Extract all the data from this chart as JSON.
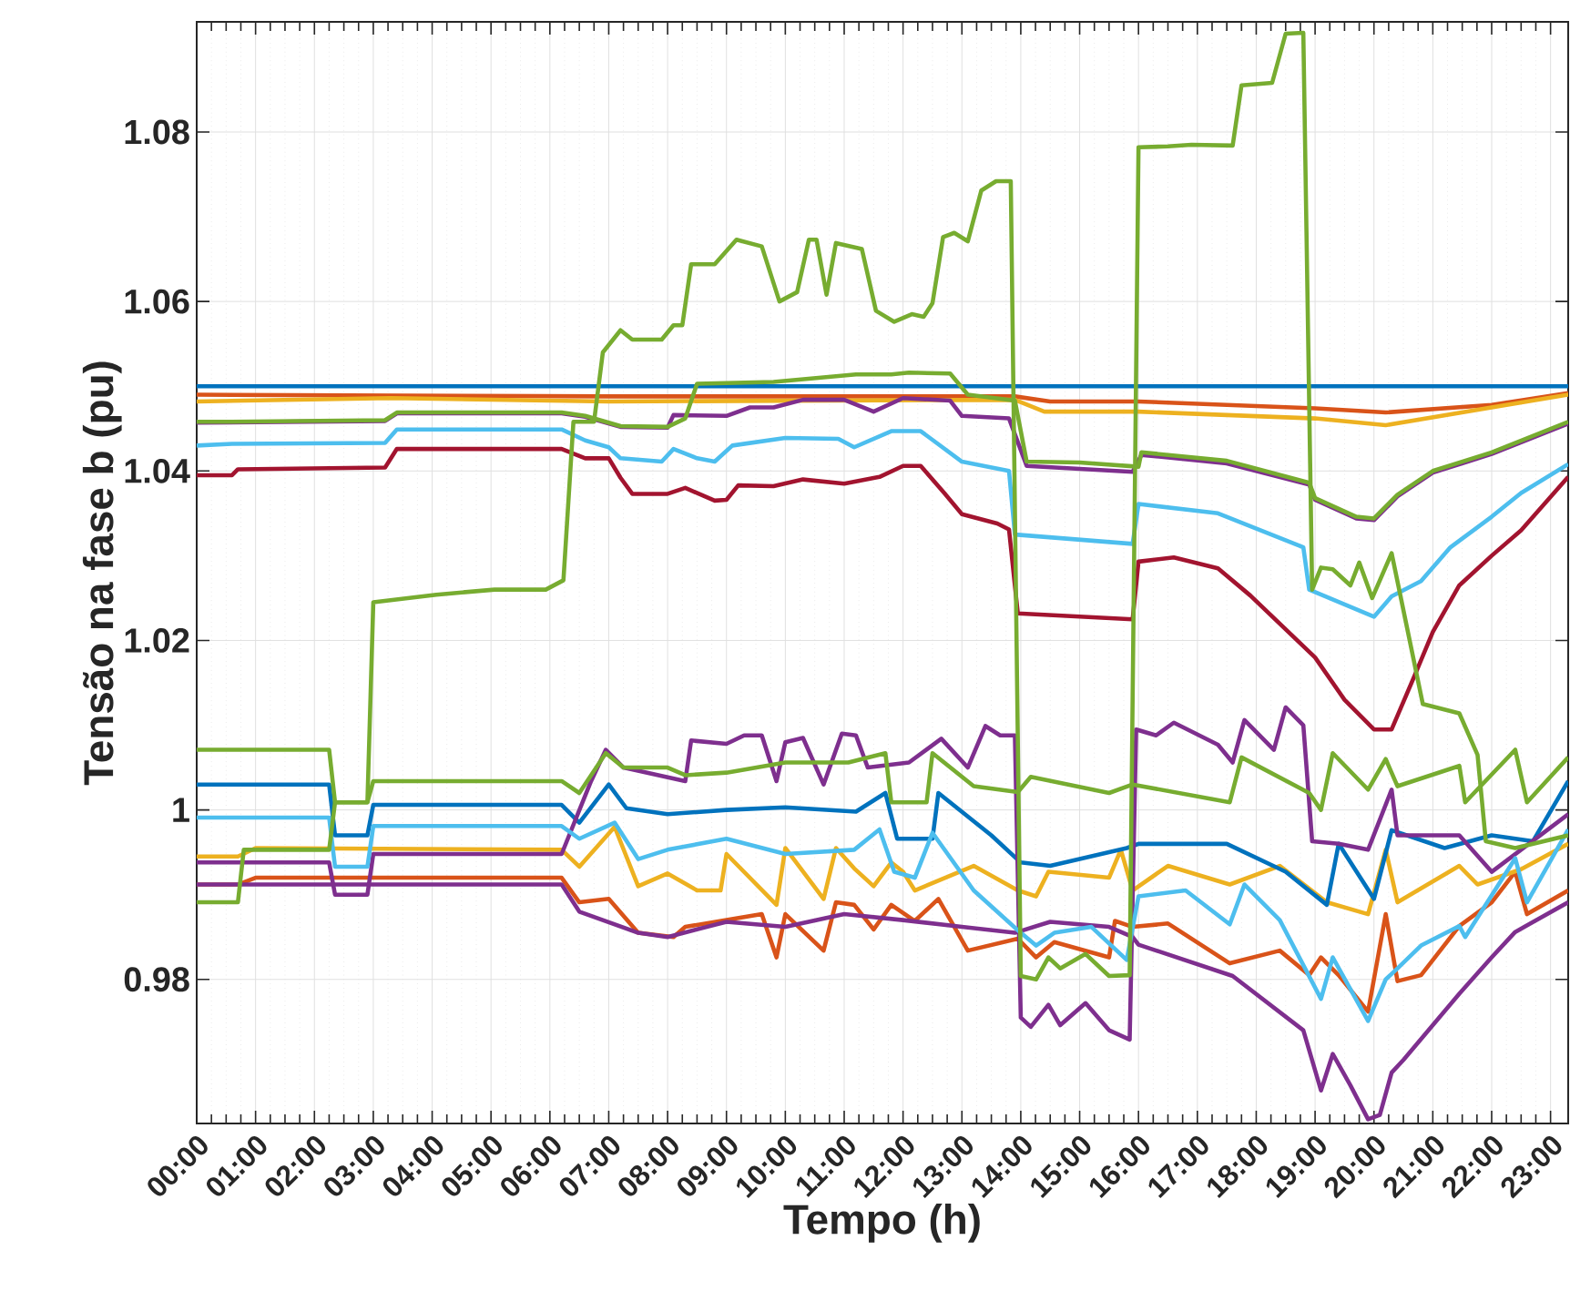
{
  "chart_data": {
    "type": "line",
    "xlabel": "Tempo (h)",
    "ylabel": "Tensão na fase b (pu)",
    "xlim": [
      0,
      23.3
    ],
    "ylim": [
      0.963,
      1.093
    ],
    "xticks": [
      {
        "value": 0,
        "label": "00:00"
      },
      {
        "value": 1,
        "label": "01:00"
      },
      {
        "value": 2,
        "label": "02:00"
      },
      {
        "value": 3,
        "label": "03:00"
      },
      {
        "value": 4,
        "label": "04:00"
      },
      {
        "value": 5,
        "label": "05:00"
      },
      {
        "value": 6,
        "label": "06:00"
      },
      {
        "value": 7,
        "label": "07:00"
      },
      {
        "value": 8,
        "label": "08:00"
      },
      {
        "value": 9,
        "label": "09:00"
      },
      {
        "value": 10,
        "label": "10:00"
      },
      {
        "value": 11,
        "label": "11:00"
      },
      {
        "value": 12,
        "label": "12:00"
      },
      {
        "value": 13,
        "label": "13:00"
      },
      {
        "value": 14,
        "label": "14:00"
      },
      {
        "value": 15,
        "label": "15:00"
      },
      {
        "value": 16,
        "label": "16:00"
      },
      {
        "value": 17,
        "label": "17:00"
      },
      {
        "value": 18,
        "label": "18:00"
      },
      {
        "value": 19,
        "label": "19:00"
      },
      {
        "value": 20,
        "label": "20:00"
      },
      {
        "value": 21,
        "label": "21:00"
      },
      {
        "value": 22,
        "label": "22:00"
      },
      {
        "value": 23,
        "label": "23:00"
      }
    ],
    "yticks": [
      0.98,
      1,
      1.02,
      1.04,
      1.06,
      1.08
    ],
    "grid": true,
    "line_style": "solid",
    "series": [
      {
        "color": "#0072bd",
        "x": [
          0,
          23.3
        ],
        "values": [
          1.05,
          1.05
        ]
      },
      {
        "color": "#d95319",
        "x": [
          0,
          7,
          13.9,
          14.5,
          16,
          19,
          20.2,
          22,
          23.3
        ],
        "values": [
          1.049,
          1.0488,
          1.0488,
          1.0482,
          1.0482,
          1.0474,
          1.0469,
          1.0478,
          1.0492
        ]
      },
      {
        "color": "#edb120",
        "x": [
          0,
          3.3,
          7,
          13.9,
          14.4,
          16,
          19,
          20.2,
          22,
          23.3
        ],
        "values": [
          1.0482,
          1.0486,
          1.0482,
          1.0484,
          1.047,
          1.047,
          1.0462,
          1.0454,
          1.0475,
          1.049
        ]
      },
      {
        "color": "#7e2f8e",
        "x": [
          0,
          3.2,
          3.4,
          6.2,
          6.6,
          7.2,
          8.0,
          8.1,
          9.0,
          9.4,
          9.8,
          10.3,
          11.0,
          11.5,
          12.0,
          12.8,
          13.0,
          13.8,
          14.1,
          15.9,
          16.05,
          17.5,
          18.9,
          19.0,
          19.7,
          20.0,
          20.4,
          21,
          22,
          23.3
        ],
        "values": [
          1.0457,
          1.0459,
          1.0468,
          1.0468,
          1.0464,
          1.0452,
          1.0451,
          1.0466,
          1.0465,
          1.0475,
          1.0475,
          1.0484,
          1.0484,
          1.047,
          1.0486,
          1.0483,
          1.0465,
          1.0462,
          1.0406,
          1.0399,
          1.0419,
          1.0409,
          1.0384,
          1.0366,
          1.0344,
          1.0342,
          1.037,
          1.0398,
          1.042,
          1.0456
        ]
      },
      {
        "color": "#77ac30",
        "x": [
          0,
          0.5,
          3.2,
          3.4,
          6.2,
          6.6,
          7.2,
          8.0,
          8.3,
          8.5,
          9.8,
          11.2,
          11.8,
          12.1,
          12.8,
          13.1,
          13.9,
          14.1,
          15,
          16.0,
          16.05,
          17.5,
          18.9,
          19.0,
          19.7,
          20.0,
          20.4,
          21,
          22,
          23.3
        ],
        "values": [
          1.0458,
          1.0458,
          1.046,
          1.0469,
          1.0469,
          1.0465,
          1.0453,
          1.0452,
          1.0462,
          1.0503,
          1.0505,
          1.0514,
          1.0514,
          1.0516,
          1.0515,
          1.049,
          1.0483,
          1.0411,
          1.041,
          1.0405,
          1.0422,
          1.0412,
          1.0386,
          1.0368,
          1.0346,
          1.0344,
          1.0372,
          1.04,
          1.0422,
          1.0458
        ]
      },
      {
        "color": "#4dbeee",
        "x": [
          0,
          0.6,
          3.2,
          3.4,
          6.2,
          6.6,
          7.0,
          7.2,
          7.9,
          8.1,
          8.5,
          8.8,
          9.1,
          10.0,
          10.9,
          11.17,
          11.8,
          12.3,
          13.0,
          13.8,
          13.9,
          15.9,
          16.0,
          17.35,
          18.8,
          18.9,
          20.0,
          20.3,
          20.8,
          21.3,
          22.0,
          22.5,
          23.3
        ],
        "values": [
          1.043,
          1.0432,
          1.0433,
          1.0449,
          1.0449,
          1.0436,
          1.0428,
          1.0415,
          1.0411,
          1.0426,
          1.0415,
          1.0411,
          1.043,
          1.0439,
          1.0438,
          1.0428,
          1.0447,
          1.0447,
          1.0411,
          1.04,
          1.0325,
          1.0314,
          1.0361,
          1.035,
          1.031,
          1.026,
          1.0228,
          1.0252,
          1.027,
          1.031,
          1.0346,
          1.0374,
          1.0408
        ]
      },
      {
        "color": "#a2142f",
        "x": [
          0,
          0.6,
          0.7,
          3.2,
          3.4,
          6.2,
          6.6,
          7.0,
          7.2,
          7.4,
          8.0,
          8.3,
          8.8,
          9.0,
          9.2,
          9.8,
          10.3,
          11.0,
          11.6,
          12.0,
          12.3,
          12.7,
          13.0,
          13.6,
          13.8,
          13.95,
          15.9,
          16.0,
          16.6,
          17.35,
          17.9,
          19.0,
          19.5,
          20.0,
          20.3,
          20.7,
          21.0,
          21.45,
          22.0,
          22.5,
          23.3
        ],
        "values": [
          1.0395,
          1.0395,
          1.0402,
          1.0404,
          1.0426,
          1.0426,
          1.0415,
          1.0415,
          1.0392,
          1.0373,
          1.0373,
          1.038,
          1.0365,
          1.0366,
          1.0383,
          1.0382,
          1.039,
          1.0385,
          1.0393,
          1.0406,
          1.0406,
          1.0374,
          1.0349,
          1.0338,
          1.0331,
          1.0232,
          1.0225,
          1.0293,
          1.0298,
          1.0285,
          1.0253,
          1.018,
          1.013,
          1.0095,
          1.0095,
          1.016,
          1.021,
          1.0265,
          1.03,
          1.033,
          1.0393
        ]
      },
      {
        "color": "#d95319",
        "x": [
          0,
          0.7,
          1.0,
          6.2,
          6.5,
          7.0,
          7.5,
          8.1,
          8.3,
          9.0,
          9.6,
          9.85,
          10.0,
          10.65,
          10.86,
          11.17,
          11.5,
          11.8,
          12.2,
          12.6,
          13.1,
          13.95,
          14.26,
          14.57,
          15.5,
          15.6,
          15.9,
          16.5,
          17.55,
          18.4,
          18.9,
          19.1,
          19.4,
          19.9,
          20.2,
          20.4,
          20.8,
          21.45,
          22.0,
          22.4,
          22.6,
          23.3
        ],
        "values": [
          0.9912,
          0.9912,
          0.992,
          0.992,
          0.9891,
          0.9895,
          0.9855,
          0.985,
          0.9862,
          0.987,
          0.9877,
          0.9826,
          0.9877,
          0.9834,
          0.9891,
          0.9888,
          0.9859,
          0.9888,
          0.9869,
          0.9895,
          0.9834,
          0.9848,
          0.9826,
          0.9844,
          0.9826,
          0.9869,
          0.9862,
          0.9866,
          0.9819,
          0.9834,
          0.9805,
          0.9826,
          0.9805,
          0.9762,
          0.9877,
          0.9798,
          0.9805,
          0.9863,
          0.9891,
          0.9927,
          0.9877,
          0.9905
        ]
      },
      {
        "color": "#7e2f8e",
        "x": [
          0,
          6.2,
          6.5,
          7.5,
          8.0,
          9.0,
          10.0,
          11.0,
          12.0,
          13.0,
          13.9,
          14.5,
          15.5,
          15.9,
          16.0,
          17.6,
          18.8,
          19.1,
          19.3,
          19.6,
          19.9,
          20.1,
          20.3,
          20.5,
          21.45,
          22.0,
          22.4,
          23.3
        ],
        "values": [
          0.9912,
          0.9912,
          0.988,
          0.9855,
          0.985,
          0.9868,
          0.9862,
          0.9877,
          0.987,
          0.9862,
          0.9855,
          0.9868,
          0.9862,
          0.985,
          0.9841,
          0.9804,
          0.974,
          0.9669,
          0.9712,
          0.9675,
          0.9635,
          0.964,
          0.969,
          0.9705,
          0.9783,
          0.9826,
          0.9856,
          0.9891
        ]
      },
      {
        "color": "#edb120",
        "x": [
          0,
          0.7,
          1.0,
          6.2,
          6.5,
          7.1,
          7.5,
          8.0,
          8.5,
          8.9,
          9.0,
          9.85,
          10.0,
          10.65,
          10.86,
          11.17,
          11.5,
          11.8,
          12.0,
          12.2,
          13.2,
          13.95,
          14.26,
          14.47,
          15.5,
          15.7,
          15.9,
          16.5,
          17.55,
          18.4,
          19.2,
          19.9,
          20.2,
          20.4,
          21.45,
          21.76,
          22.5,
          23.3
        ],
        "values": [
          0.9945,
          0.9945,
          0.9955,
          0.9953,
          0.9933,
          0.998,
          0.991,
          0.9925,
          0.9905,
          0.9905,
          0.9948,
          0.9888,
          0.9955,
          0.9895,
          0.9955,
          0.9931,
          0.991,
          0.9938,
          0.9927,
          0.9905,
          0.9934,
          0.9905,
          0.9898,
          0.9927,
          0.992,
          0.9953,
          0.9905,
          0.9934,
          0.9912,
          0.9934,
          0.9891,
          0.9877,
          0.9953,
          0.9891,
          0.9934,
          0.9912,
          0.993,
          0.996
        ]
      },
      {
        "color": "#0072bd",
        "x": [
          0,
          2.25,
          2.35,
          2.9,
          3.0,
          6.2,
          6.5,
          7.0,
          7.3,
          8.0,
          9.0,
          10.0,
          11.2,
          11.7,
          11.9,
          12.5,
          12.6,
          13.5,
          14.0,
          14.5,
          15.8,
          16.0,
          17.5,
          18.5,
          19.2,
          19.4,
          20.0,
          20.3,
          21.2,
          22.0,
          22.7,
          23.3
        ],
        "values": [
          1.003,
          1.003,
          0.997,
          0.997,
          1.0006,
          1.0006,
          0.9985,
          1.003,
          1.0002,
          0.9995,
          1.0,
          1.0003,
          0.9998,
          1.002,
          0.9966,
          0.9966,
          1.002,
          0.997,
          0.9938,
          0.9934,
          0.9955,
          0.996,
          0.996,
          0.9927,
          0.9888,
          0.996,
          0.9895,
          0.9976,
          0.9955,
          0.997,
          0.9963,
          1.0034
        ]
      },
      {
        "color": "#7e2f8e",
        "x": [
          0,
          2.25,
          2.35,
          2.9,
          3.0,
          6.2,
          6.7,
          6.95,
          7.25,
          8.3,
          8.4,
          9.0,
          9.3,
          9.6,
          9.85,
          10.0,
          10.3,
          10.65,
          10.96,
          11.2,
          11.4,
          12.1,
          12.65,
          13.1,
          13.4,
          13.65,
          13.9,
          14.0,
          14.17,
          14.47,
          14.67,
          15.1,
          15.5,
          15.85,
          15.96,
          16.3,
          16.6,
          17.35,
          17.6,
          17.8,
          18.3,
          18.5,
          18.8,
          18.95,
          19.4,
          19.9,
          20.3,
          20.4,
          21.45,
          22.0,
          23.3
        ],
        "values": [
          0.9938,
          0.9938,
          0.99,
          0.99,
          0.9948,
          0.9948,
          1.0034,
          1.0071,
          1.005,
          1.0034,
          1.0082,
          1.0078,
          1.0088,
          1.0088,
          1.0034,
          1.008,
          1.0085,
          1.003,
          1.009,
          1.0088,
          1.005,
          1.0056,
          1.0084,
          1.005,
          1.0099,
          1.0088,
          1.0088,
          0.9755,
          0.9744,
          0.977,
          0.9746,
          0.9772,
          0.974,
          0.9729,
          1.0095,
          1.0088,
          1.0103,
          1.0077,
          1.0056,
          1.0106,
          1.0071,
          1.0121,
          1.01,
          0.9963,
          0.996,
          0.9953,
          1.0024,
          0.997,
          0.997,
          0.9927,
          0.9995
        ]
      },
      {
        "color": "#77ac30",
        "x": [
          0,
          2.25,
          2.35,
          2.9,
          3.0,
          6.2,
          6.5,
          6.95,
          7.25,
          8.0,
          8.3,
          9.0,
          10.0,
          11.07,
          11.7,
          11.8,
          12.4,
          12.5,
          13.2,
          13.95,
          14.17,
          15.5,
          15.9,
          17.55,
          17.75,
          18.9,
          19.1,
          19.3,
          19.9,
          20.2,
          20.4,
          21.45,
          21.55,
          22.4,
          22.6,
          23.3
        ],
        "values": [
          1.0071,
          1.0071,
          1.0009,
          1.0009,
          1.0034,
          1.0034,
          1.002,
          1.0067,
          1.005,
          1.005,
          1.0041,
          1.0044,
          1.0056,
          1.0056,
          1.0067,
          1.0009,
          1.0009,
          1.0067,
          1.0028,
          1.0021,
          1.0039,
          1.002,
          1.003,
          1.0009,
          1.0062,
          1.002,
          1.0,
          1.0067,
          1.0024,
          1.006,
          1.0028,
          1.0052,
          1.0009,
          1.0071,
          1.0009,
          1.0062
        ]
      },
      {
        "color": "#4dbeee",
        "x": [
          0,
          2.25,
          2.35,
          2.9,
          3.0,
          6.2,
          6.5,
          7.1,
          7.5,
          8.0,
          9.0,
          10.0,
          11.17,
          11.6,
          11.85,
          12.2,
          12.5,
          13.2,
          13.95,
          14.26,
          14.57,
          15.2,
          15.8,
          16.0,
          16.8,
          17.55,
          17.8,
          18.4,
          19.1,
          19.3,
          19.9,
          20.2,
          20.4,
          20.8,
          21.45,
          21.55,
          22.4,
          22.6,
          23.3
        ],
        "values": [
          0.9991,
          0.9991,
          0.9933,
          0.9933,
          0.9981,
          0.9981,
          0.9966,
          0.9985,
          0.9942,
          0.9953,
          0.9966,
          0.9948,
          0.9953,
          0.9977,
          0.9927,
          0.992,
          0.9973,
          0.9905,
          0.9858,
          0.984,
          0.9855,
          0.9862,
          0.9823,
          0.9898,
          0.9905,
          0.9865,
          0.9912,
          0.987,
          0.9777,
          0.9826,
          0.9751,
          0.98,
          0.9813,
          0.984,
          0.9863,
          0.985,
          0.9943,
          0.9891,
          0.9977
        ]
      },
      {
        "color": "#77ac30",
        "x": [
          0,
          0.7,
          0.8,
          2.25,
          2.35,
          2.9,
          3.0,
          4.07,
          5.06,
          5.93,
          6.23,
          6.4,
          6.75,
          6.9,
          7.2,
          7.4,
          7.9,
          8.1,
          8.25,
          8.4,
          8.8,
          9.17,
          9.6,
          9.9,
          10.2,
          10.4,
          10.53,
          10.7,
          10.86,
          11.3,
          11.54,
          11.85,
          12.15,
          12.35,
          12.5,
          12.68,
          12.87,
          13.1,
          13.33,
          13.58,
          13.83,
          14.0,
          14.26,
          14.47,
          14.67,
          15.1,
          15.5,
          15.85,
          16.0,
          16.5,
          16.9,
          17.6,
          17.75,
          18.27,
          18.5,
          18.8,
          18.95,
          19.1,
          19.3,
          19.6,
          19.75,
          19.97,
          20.3,
          20.83,
          21.45,
          21.76,
          21.9,
          22.4,
          23.3
        ],
        "values": [
          0.9891,
          0.9891,
          0.9953,
          0.9953,
          1.0009,
          1.0009,
          1.0245,
          1.0254,
          1.026,
          1.026,
          1.0271,
          1.0458,
          1.0458,
          1.054,
          1.0566,
          1.0555,
          1.0555,
          1.0572,
          1.0572,
          1.0644,
          1.0644,
          1.0673,
          1.0665,
          1.06,
          1.0611,
          1.0673,
          1.0673,
          1.0608,
          1.0669,
          1.0662,
          1.0589,
          1.0576,
          1.0585,
          1.0582,
          1.0598,
          1.0676,
          1.0681,
          1.0671,
          1.0731,
          1.0742,
          1.0742,
          0.9804,
          0.98,
          0.9826,
          0.9813,
          0.983,
          0.9804,
          0.9805,
          1.0782,
          1.0783,
          1.0785,
          1.0784,
          1.0855,
          1.0858,
          1.0916,
          1.0917,
          1.026,
          1.0286,
          1.0284,
          1.0265,
          1.0292,
          1.025,
          1.0303,
          1.0125,
          1.0114,
          1.0065,
          0.9963,
          0.9955,
          0.997
        ]
      }
    ]
  }
}
